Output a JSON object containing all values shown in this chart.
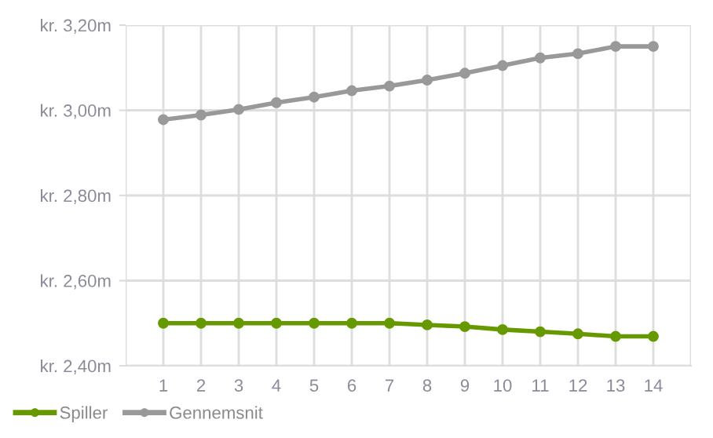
{
  "chart_data": {
    "type": "line",
    "categories": [
      "1",
      "2",
      "3",
      "4",
      "5",
      "6",
      "7",
      "8",
      "9",
      "10",
      "11",
      "12",
      "13",
      "14"
    ],
    "series": [
      {
        "name": "Spiller",
        "color": "#669900",
        "values": [
          2.5,
          2.5,
          2.5,
          2.5,
          2.5,
          2.5,
          2.5,
          2.496,
          2.492,
          2.485,
          2.48,
          2.475,
          2.469,
          2.469
        ]
      },
      {
        "name": "Gennemsnit",
        "color": "#999999",
        "values": [
          2.978,
          2.989,
          3.002,
          3.018,
          3.031,
          3.046,
          3.057,
          3.071,
          3.087,
          3.105,
          3.123,
          3.133,
          3.15,
          3.15
        ]
      }
    ],
    "ylim": [
      2.4,
      3.2
    ],
    "yticks": [
      {
        "value": 2.4,
        "label": "kr. 2,40m"
      },
      {
        "value": 2.6,
        "label": "kr. 2,60m"
      },
      {
        "value": 2.8,
        "label": "kr. 2,80m"
      },
      {
        "value": 3.0,
        "label": "kr. 3,00m"
      },
      {
        "value": 3.2,
        "label": "kr. 3,20m"
      }
    ],
    "grid": true,
    "legend": "bottom left",
    "marker": "circle",
    "line_style": "solid"
  }
}
